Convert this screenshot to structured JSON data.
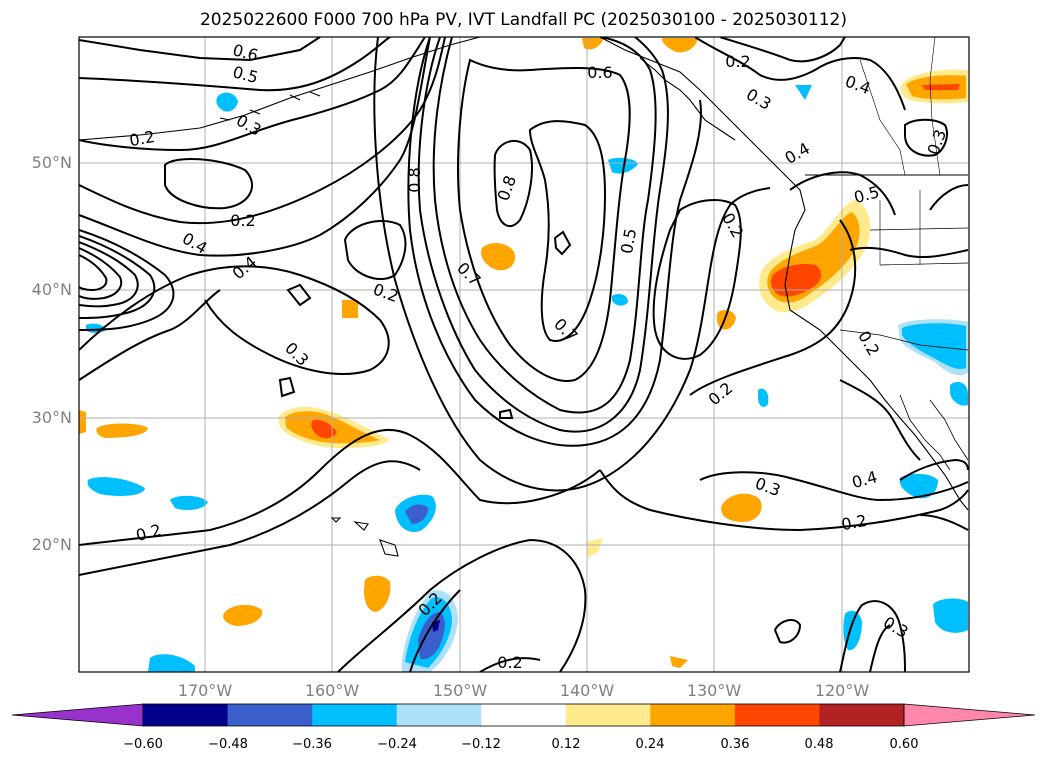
{
  "title": "2025022600 F000 700 hPa PV, IVT Landfall PC (2025030100 - 2025030112)",
  "lat_labels": [
    "50°N",
    "40°N",
    "30°N",
    "20°N"
  ],
  "lon_labels": [
    "170°W",
    "160°W",
    "150°W",
    "140°W",
    "130°W",
    "120°W"
  ],
  "colorbar": {
    "colors": [
      "#9932CC",
      "#00008B",
      "#3A5FCD",
      "#00BFFF",
      "#ADE1FA",
      "#FFFFFF",
      "#FFEA8E",
      "#FFA500",
      "#FF4500",
      "#B22222",
      "#FF88AA"
    ],
    "ticks": [
      "−0.60",
      "−0.48",
      "−0.36",
      "−0.24",
      "−0.12",
      "0.12",
      "0.24",
      "0.36",
      "0.48",
      "0.60"
    ]
  },
  "contour_labels": [
    "0.6",
    "0.5",
    "0.2",
    "0.3",
    "0.6",
    "0.2",
    "0.3",
    "0.4",
    "0.3",
    "0.4",
    "0.5",
    "0.2",
    "0.4",
    "0.4",
    "0.8",
    "0.7",
    "0.5",
    "0.2",
    "0.8",
    "0.2",
    "0.7",
    "0.3",
    "0.2",
    "0.3",
    "0.4",
    "0.2",
    "0.2",
    "0.2",
    "0.2",
    "0.2",
    "0.3"
  ],
  "colors": {
    "contour": "#000000",
    "grid": "#b0b0b0",
    "coast": "#000000"
  }
}
